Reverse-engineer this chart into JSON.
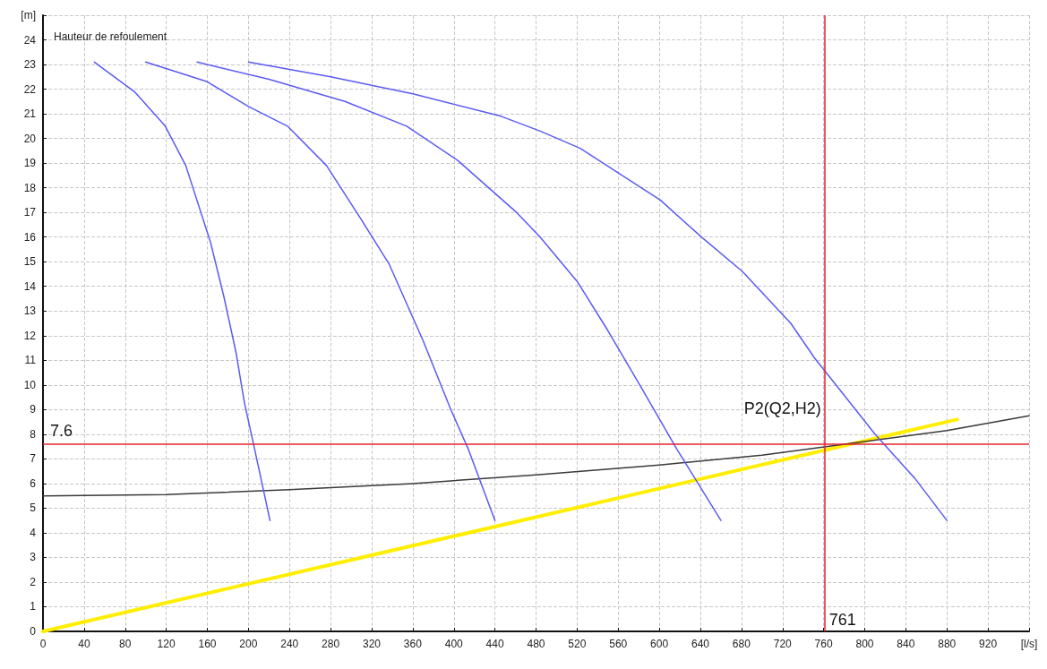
{
  "chart_data": {
    "type": "line",
    "ylabel": "Hauteur de refoulement",
    "xlim": [
      0,
      960
    ],
    "xticks": [
      0,
      40,
      80,
      120,
      160,
      200,
      240,
      280,
      320,
      360,
      400,
      440,
      480,
      520,
      560,
      600,
      640,
      680,
      720,
      760,
      800,
      840,
      880,
      920,
      {
        "value": 960,
        "label": "[l/s]"
      }
    ],
    "ylim": [
      0,
      25
    ],
    "yticks": [
      0,
      1,
      2,
      3,
      4,
      5,
      6,
      7,
      8,
      9,
      10,
      11,
      12,
      13,
      14,
      15,
      16,
      17,
      18,
      19,
      20,
      21,
      22,
      23,
      24,
      {
        "value": 25,
        "label": "[m]"
      }
    ],
    "grid": true,
    "marker": "none",
    "line_style": "solid",
    "series": [
      {
        "color": "#5a5af5",
        "x": [
          50,
          89,
          119,
          139,
          163,
          176,
          188,
          196,
          206,
          221
        ],
        "values": [
          23.1,
          21.9,
          20.5,
          18.9,
          15.8,
          13.6,
          11.3,
          9.3,
          7.4,
          4.5
        ]
      },
      {
        "color": "#5a5af5",
        "x": [
          100,
          160,
          200,
          238,
          276,
          310,
          337,
          370,
          397,
          414,
          440
        ],
        "values": [
          23.1,
          22.3,
          21.3,
          20.5,
          18.9,
          16.7,
          14.9,
          11.8,
          9.0,
          7.4,
          4.5
        ]
      },
      {
        "color": "#5a5af5",
        "x": [
          150,
          220,
          294,
          354,
          404,
          461,
          484,
          520,
          550,
          581,
          617,
          660
        ],
        "values": [
          23.1,
          22.4,
          21.5,
          20.5,
          19.1,
          17.0,
          16.0,
          14.2,
          12.2,
          10.0,
          7.4,
          4.5
        ]
      },
      {
        "color": "#5a5af5",
        "x": [
          200,
          280,
          361,
          446,
          484,
          523,
          601,
          641,
          681,
          728,
          751,
          810,
          849,
          880
        ],
        "values": [
          23.1,
          22.5,
          21.8,
          20.9,
          20.3,
          19.6,
          17.5,
          16.0,
          14.6,
          12.5,
          11.1,
          8.0,
          6.2,
          4.5
        ]
      },
      {
        "color": "#3a3a3a",
        "x": [
          0,
          120,
          240,
          360,
          480,
          600,
          700,
          800,
          880,
          960
        ],
        "values": [
          5.5,
          5.55,
          5.75,
          6.0,
          6.35,
          6.75,
          7.15,
          7.7,
          8.15,
          8.75
        ]
      },
      {
        "color": "#ffee00",
        "x": [
          0,
          890
        ],
        "values": [
          0,
          8.6
        ]
      }
    ],
    "ref_lines": [
      {
        "axis": "y",
        "value": 7.6,
        "label": "7.6",
        "color": "#e8212b"
      },
      {
        "axis": "x",
        "value": 761,
        "label": "761",
        "color": "#e8212b"
      }
    ],
    "annotations": [
      {
        "text": "P2(Q2,H2)",
        "x": 761,
        "y": 7.5
      }
    ]
  }
}
